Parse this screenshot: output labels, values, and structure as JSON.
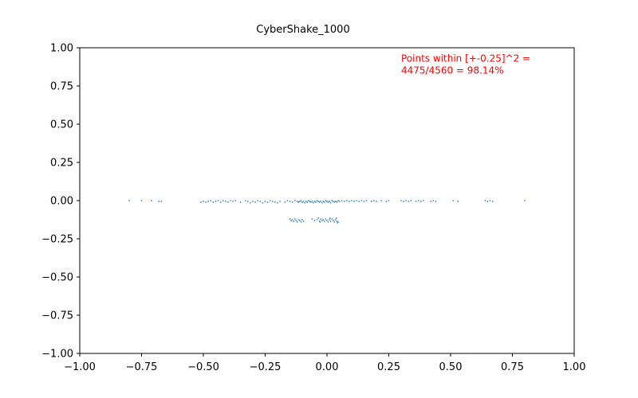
{
  "chart_data": {
    "type": "scatter",
    "title": "CyberShake_1000",
    "xlabel": "",
    "ylabel": "",
    "xlim": [
      -1.0,
      1.0
    ],
    "ylim": [
      -1.0,
      1.0
    ],
    "grid": false,
    "legend": "none",
    "x_ticks": [
      -1.0,
      -0.75,
      -0.5,
      -0.25,
      0.0,
      0.25,
      0.5,
      0.75,
      1.0
    ],
    "x_tick_labels": [
      "−1.00",
      "−0.75",
      "−0.50",
      "−0.25",
      "0.00",
      "0.25",
      "0.50",
      "0.75",
      "1.00"
    ],
    "y_ticks": [
      1.0,
      0.75,
      0.5,
      0.25,
      0.0,
      -0.25,
      -0.5,
      -0.75,
      -1.0
    ],
    "y_tick_labels": [
      "1.00",
      "0.75",
      "0.50",
      "0.25",
      "0.00",
      "−0.25",
      "−0.50",
      "−0.75",
      "−1.00"
    ],
    "annotation": {
      "lines": [
        "Points within [+-0.25]^2 =",
        "4475/4560 = 98.14%"
      ],
      "color": "#ff0000",
      "x": 0.3,
      "y": 0.91
    },
    "series": [
      {
        "color": "#1f77b4",
        "points": [
          [
            -0.8,
            0.0
          ],
          [
            -0.75,
            0.0
          ],
          [
            -0.71,
            0.0
          ],
          [
            -0.68,
            -0.005
          ],
          [
            -0.67,
            -0.005
          ],
          [
            -0.51,
            -0.01
          ],
          [
            -0.5,
            -0.005
          ],
          [
            -0.49,
            -0.01
          ],
          [
            -0.48,
            -0.005
          ],
          [
            -0.47,
            0.0
          ],
          [
            -0.46,
            -0.01
          ],
          [
            -0.45,
            -0.005
          ],
          [
            -0.44,
            0.0
          ],
          [
            -0.43,
            -0.01
          ],
          [
            -0.42,
            0.0
          ],
          [
            -0.41,
            -0.005
          ],
          [
            -0.4,
            -0.01
          ],
          [
            -0.39,
            0.0
          ],
          [
            -0.38,
            -0.005
          ],
          [
            -0.37,
            0.0
          ],
          [
            -0.35,
            -0.01
          ],
          [
            -0.33,
            0.0
          ],
          [
            -0.32,
            -0.005
          ],
          [
            -0.31,
            -0.015
          ],
          [
            -0.3,
            -0.005
          ],
          [
            -0.29,
            -0.01
          ],
          [
            -0.28,
            0.0
          ],
          [
            -0.27,
            -0.005
          ],
          [
            -0.26,
            -0.015
          ],
          [
            -0.25,
            -0.005
          ],
          [
            -0.24,
            -0.01
          ],
          [
            -0.23,
            0.0
          ],
          [
            -0.22,
            -0.005
          ],
          [
            -0.21,
            -0.01
          ],
          [
            -0.2,
            -0.015
          ],
          [
            -0.19,
            -0.005
          ],
          [
            -0.17,
            -0.01
          ],
          [
            -0.16,
            0.0
          ],
          [
            -0.15,
            -0.005
          ],
          [
            -0.14,
            -0.01
          ],
          [
            -0.13,
            0.0
          ],
          [
            -0.12,
            -0.005
          ],
          [
            -0.115,
            -0.01
          ],
          [
            -0.11,
            -0.005
          ],
          [
            -0.105,
            0.0
          ],
          [
            -0.1,
            -0.01
          ],
          [
            -0.095,
            -0.005
          ],
          [
            -0.09,
            -0.015
          ],
          [
            -0.085,
            -0.005
          ],
          [
            -0.08,
            -0.01
          ],
          [
            -0.075,
            0.0
          ],
          [
            -0.07,
            -0.005
          ],
          [
            -0.065,
            -0.01
          ],
          [
            -0.06,
            -0.005
          ],
          [
            -0.055,
            -0.015
          ],
          [
            -0.05,
            -0.005
          ],
          [
            -0.045,
            -0.01
          ],
          [
            -0.04,
            0.0
          ],
          [
            -0.035,
            -0.005
          ],
          [
            -0.03,
            -0.01
          ],
          [
            -0.025,
            -0.005
          ],
          [
            -0.02,
            -0.015
          ],
          [
            -0.015,
            -0.005
          ],
          [
            -0.01,
            -0.01
          ],
          [
            -0.005,
            0.0
          ],
          [
            0.0,
            -0.005
          ],
          [
            0.005,
            -0.01
          ],
          [
            0.01,
            -0.005
          ],
          [
            0.015,
            -0.015
          ],
          [
            0.02,
            0.0
          ],
          [
            0.025,
            -0.005
          ],
          [
            0.03,
            -0.01
          ],
          [
            0.035,
            -0.005
          ],
          [
            0.04,
            -0.01
          ],
          [
            0.045,
            0.0
          ],
          [
            0.05,
            -0.005
          ],
          [
            0.06,
            0.0
          ],
          [
            0.07,
            -0.005
          ],
          [
            0.08,
            0.0
          ],
          [
            0.09,
            -0.005
          ],
          [
            0.1,
            0.0
          ],
          [
            0.11,
            -0.005
          ],
          [
            0.12,
            0.0
          ],
          [
            0.13,
            -0.005
          ],
          [
            0.14,
            0.0
          ],
          [
            0.15,
            -0.005
          ],
          [
            0.16,
            0.0
          ],
          [
            0.18,
            -0.005
          ],
          [
            0.19,
            0.0
          ],
          [
            0.2,
            -0.005
          ],
          [
            0.22,
            0.0
          ],
          [
            0.24,
            -0.005
          ],
          [
            0.25,
            0.0
          ],
          [
            0.3,
            0.0
          ],
          [
            0.31,
            -0.005
          ],
          [
            0.32,
            0.0
          ],
          [
            0.33,
            -0.005
          ],
          [
            0.34,
            0.0
          ],
          [
            0.36,
            -0.005
          ],
          [
            0.37,
            0.0
          ],
          [
            0.38,
            -0.005
          ],
          [
            0.39,
            0.0
          ],
          [
            0.42,
            -0.005
          ],
          [
            0.43,
            0.0
          ],
          [
            0.44,
            -0.005
          ],
          [
            0.51,
            0.0
          ],
          [
            0.53,
            -0.005
          ],
          [
            0.64,
            0.0
          ],
          [
            0.65,
            -0.005
          ],
          [
            0.66,
            0.0
          ],
          [
            0.67,
            -0.005
          ],
          [
            0.8,
            0.0
          ],
          [
            -0.15,
            -0.12
          ],
          [
            -0.145,
            -0.13
          ],
          [
            -0.14,
            -0.125
          ],
          [
            -0.135,
            -0.135
          ],
          [
            -0.13,
            -0.12
          ],
          [
            -0.125,
            -0.13
          ],
          [
            -0.12,
            -0.14
          ],
          [
            -0.115,
            -0.125
          ],
          [
            -0.11,
            -0.13
          ],
          [
            -0.105,
            -0.14
          ],
          [
            -0.1,
            -0.125
          ],
          [
            -0.095,
            -0.135
          ],
          [
            -0.06,
            -0.12
          ],
          [
            -0.05,
            -0.13
          ],
          [
            -0.04,
            -0.125
          ],
          [
            -0.035,
            -0.115
          ],
          [
            -0.03,
            -0.135
          ],
          [
            -0.025,
            -0.12
          ],
          [
            -0.02,
            -0.13
          ],
          [
            -0.015,
            -0.125
          ],
          [
            -0.01,
            -0.135
          ],
          [
            -0.005,
            -0.12
          ],
          [
            0.0,
            -0.13
          ],
          [
            0.005,
            -0.14
          ],
          [
            0.01,
            -0.125
          ],
          [
            0.015,
            -0.135
          ],
          [
            0.02,
            -0.12
          ],
          [
            0.025,
            -0.13
          ],
          [
            0.03,
            -0.14
          ],
          [
            0.035,
            -0.125
          ],
          [
            0.04,
            -0.135
          ],
          [
            0.045,
            -0.14
          ],
          [
            0.038,
            -0.115
          ],
          [
            0.042,
            -0.145
          ],
          [
            -0.028,
            -0.14
          ],
          [
            0.012,
            -0.115
          ]
        ]
      }
    ]
  }
}
